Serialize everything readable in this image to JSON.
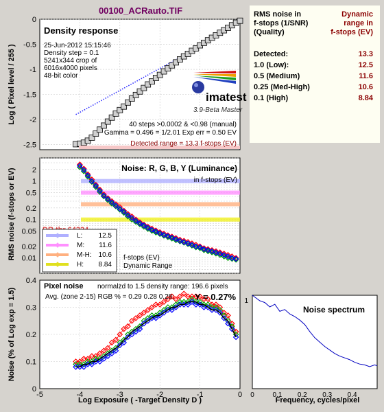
{
  "figure_title": "00100_ACRauto.TIF",
  "colors": {
    "background": "#d6d3ce",
    "plot_bg": "#ffffff",
    "title": "#700060",
    "dark_red": "#8b0000",
    "red": "#ff0000",
    "green": "#00a000",
    "blue": "#0000ff",
    "gray_marker": "#d0d0d0"
  },
  "summary": {
    "col1_header": [
      "RMS noise in",
      "f-stops (1/SNR)",
      "(Quality)"
    ],
    "col2_header": [
      "Dynamic",
      "range in",
      "f-stops (EV)"
    ],
    "rows": [
      {
        "label": "Detected:",
        "value": "13.3"
      },
      {
        "label": "1.0   (Low):",
        "value": "12.5"
      },
      {
        "label": "0.5   (Medium)",
        "value": "11.6"
      },
      {
        "label": "0.25 (Med-High)",
        "value": "10.6"
      },
      {
        "label": "0.1   (High)",
        "value": "8.84"
      }
    ]
  },
  "chart_data": [
    {
      "id": "density-response",
      "type": "scatter",
      "title": "Density response",
      "ylabel": "Log ( Pixel level / 255 )",
      "xlim": [
        -5,
        0
      ],
      "ylim": [
        -2.6,
        0
      ],
      "yticks": [
        "0",
        "-0.5",
        "-1",
        "-1.5",
        "-2",
        "-2.5"
      ],
      "grid": true,
      "info": [
        "25-Jun-2012 15:15:46",
        "Density step = 0.1",
        "5241x344 crop of",
        "6016x4000 pixels",
        "48-bit color"
      ],
      "logo_text": "imatest",
      "version_text": "3.9-Beta  Master",
      "stats_line1": "40 steps >0.0002 & <0.98 (manual)",
      "stats_line2": "Gamma = 0.496 = 1/2.01  Exp err = 0.50 EV",
      "detected_range": "Detected range = 13.3 f-stops (EV)",
      "x": [
        -4.1,
        -4.0,
        -3.9,
        -3.8,
        -3.7,
        -3.6,
        -3.5,
        -3.4,
        -3.3,
        -3.2,
        -3.1,
        -3.0,
        -2.9,
        -2.8,
        -2.7,
        -2.6,
        -2.5,
        -2.4,
        -2.3,
        -2.2,
        -2.1,
        -2.0,
        -1.9,
        -1.8,
        -1.7,
        -1.6,
        -1.5,
        -1.4,
        -1.3,
        -1.2,
        -1.1,
        -1.0,
        -0.9,
        -0.8,
        -0.7,
        -0.6,
        -0.5,
        -0.4,
        -0.3,
        -0.2,
        -0.1,
        0.0
      ],
      "y": [
        -2.49,
        -2.48,
        -2.46,
        -2.42,
        -2.36,
        -2.28,
        -2.2,
        -2.12,
        -2.04,
        -1.96,
        -1.88,
        -1.81,
        -1.74,
        -1.66,
        -1.58,
        -1.51,
        -1.44,
        -1.37,
        -1.3,
        -1.24,
        -1.17,
        -1.11,
        -1.04,
        -0.98,
        -0.92,
        -0.86,
        -0.8,
        -0.74,
        -0.69,
        -0.63,
        -0.58,
        -0.52,
        -0.47,
        -0.42,
        -0.37,
        -0.32,
        -0.27,
        -0.22,
        -0.17,
        -0.12,
        -0.07,
        -0.03
      ],
      "fit_line": {
        "x": [
          -4.1,
          -1.2
        ],
        "y": [
          -1.9,
          -0.63
        ]
      }
    },
    {
      "id": "noise-fstops",
      "type": "line",
      "title": "Noise: R, G, B, Y (Luminance)",
      "subtitle": "in f-stops (EV)",
      "ylabel": "RMS noise (f-stops or EV)",
      "xlim": [
        -5,
        0
      ],
      "ylim_log": [
        0.004,
        4
      ],
      "yticks": [
        "2",
        "1",
        "0.5",
        "0.2",
        "0.1",
        "0.05",
        "0.02",
        "0.01"
      ],
      "ytick_values": [
        2,
        1,
        0.5,
        0.2,
        0.1,
        0.05,
        0.02,
        0.01
      ],
      "dr_label": "DR thr 64224",
      "legend": [
        {
          "name": "L:",
          "value": "12.5",
          "color": "#b0b0ff"
        },
        {
          "name": "M:",
          "value": "11.6",
          "color": "#ff90ff"
        },
        {
          "name": "M-H:",
          "value": "10.6",
          "color": "#ffb080"
        },
        {
          "name": "H:",
          "value": "8.84",
          "color": "#e0e020"
        }
      ],
      "caption": [
        "f-stops (EV)",
        "Dynamic Range"
      ],
      "thresholds": [
        {
          "value": 1.0,
          "color": "#b0b0ff"
        },
        {
          "value": 0.5,
          "color": "#ff90ff"
        },
        {
          "value": 0.25,
          "color": "#ffb080"
        },
        {
          "value": 0.1,
          "color": "#f0f020"
        }
      ],
      "x": [
        -4.0,
        -3.9,
        -3.8,
        -3.7,
        -3.6,
        -3.5,
        -3.4,
        -3.3,
        -3.2,
        -3.1,
        -3.0,
        -2.9,
        -2.8,
        -2.7,
        -2.6,
        -2.5,
        -2.4,
        -2.3,
        -2.2,
        -2.1,
        -2.0,
        -1.9,
        -1.8,
        -1.7,
        -1.6,
        -1.5,
        -1.4,
        -1.3,
        -1.2,
        -1.1,
        -1.0,
        -0.9,
        -0.8,
        -0.7,
        -0.6,
        -0.5,
        -0.4,
        -0.3,
        -0.2,
        -0.1
      ],
      "series": [
        {
          "name": "R",
          "color": "#ff0000",
          "values": [
            2.7,
            2.1,
            1.5,
            1.1,
            0.8,
            0.6,
            0.45,
            0.36,
            0.3,
            0.25,
            0.21,
            0.17,
            0.14,
            0.12,
            0.1,
            0.085,
            0.074,
            0.065,
            0.058,
            0.052,
            0.047,
            0.043,
            0.039,
            0.036,
            0.033,
            0.03,
            0.028,
            0.026,
            0.024,
            0.022,
            0.02,
            0.018,
            0.017,
            0.016,
            0.015,
            0.014,
            0.013,
            0.012,
            0.011,
            0.01
          ]
        },
        {
          "name": "G",
          "color": "#00a000",
          "values": [
            2.3,
            1.8,
            1.3,
            0.95,
            0.7,
            0.52,
            0.4,
            0.32,
            0.26,
            0.22,
            0.18,
            0.15,
            0.12,
            0.1,
            0.087,
            0.075,
            0.065,
            0.057,
            0.051,
            0.046,
            0.042,
            0.038,
            0.035,
            0.032,
            0.029,
            0.027,
            0.025,
            0.023,
            0.021,
            0.019,
            0.018,
            0.016,
            0.015,
            0.014,
            0.013,
            0.012,
            0.011,
            0.01,
            0.0095,
            0.009
          ]
        },
        {
          "name": "B",
          "color": "#0000ff",
          "values": [
            2.5,
            1.95,
            1.4,
            1.0,
            0.75,
            0.56,
            0.42,
            0.34,
            0.28,
            0.23,
            0.19,
            0.16,
            0.13,
            0.11,
            0.093,
            0.08,
            0.07,
            0.061,
            0.054,
            0.049,
            0.044,
            0.04,
            0.037,
            0.034,
            0.031,
            0.028,
            0.026,
            0.024,
            0.022,
            0.02,
            0.019,
            0.017,
            0.016,
            0.015,
            0.014,
            0.013,
            0.012,
            0.011,
            0.01,
            0.0095
          ]
        }
      ]
    },
    {
      "id": "pixel-noise",
      "type": "line",
      "title": "Pixel noise",
      "subtitle": "normalzd to 1.5 density range: 196.6 pixels",
      "avg_text": "Avg. (zone 2-15) RGB % = 0.29  0.28  0.28;",
      "y_text": "Y = 0.27%",
      "xlabel": "Log Exposure ( -Target Density D )",
      "ylabel": "Noise (% of Log exp = 1.5)",
      "xlim": [
        -5,
        0
      ],
      "ylim": [
        0,
        0.4
      ],
      "xticks": [
        "-5",
        "-4",
        "-3",
        "-2",
        "-1",
        "0"
      ],
      "yticks": [
        "0.4",
        "0.3",
        "0.2",
        "0.1",
        "0"
      ],
      "x": [
        -4.1,
        -4.0,
        -3.9,
        -3.8,
        -3.7,
        -3.6,
        -3.5,
        -3.4,
        -3.3,
        -3.2,
        -3.1,
        -3.0,
        -2.9,
        -2.8,
        -2.7,
        -2.6,
        -2.5,
        -2.4,
        -2.3,
        -2.2,
        -2.1,
        -2.0,
        -1.9,
        -1.8,
        -1.7,
        -1.6,
        -1.5,
        -1.4,
        -1.3,
        -1.2,
        -1.1,
        -1.0,
        -0.9,
        -0.8,
        -0.7,
        -0.6,
        -0.5,
        -0.4,
        -0.3,
        -0.2,
        -0.1
      ],
      "series": [
        {
          "name": "R",
          "color": "#ff0000",
          "values": [
            0.1,
            0.1,
            0.11,
            0.11,
            0.12,
            0.12,
            0.13,
            0.14,
            0.15,
            0.17,
            0.18,
            0.2,
            0.22,
            0.23,
            0.25,
            0.26,
            0.27,
            0.28,
            0.29,
            0.3,
            0.31,
            0.31,
            0.32,
            0.33,
            0.34,
            0.33,
            0.34,
            0.35,
            0.34,
            0.34,
            0.34,
            0.34,
            0.33,
            0.33,
            0.31,
            0.31,
            0.3,
            0.28,
            0.27,
            0.24,
            0.21
          ]
        },
        {
          "name": "G",
          "color": "#00a000",
          "values": [
            0.09,
            0.09,
            0.09,
            0.1,
            0.1,
            0.11,
            0.11,
            0.12,
            0.13,
            0.14,
            0.15,
            0.17,
            0.18,
            0.2,
            0.21,
            0.22,
            0.23,
            0.25,
            0.26,
            0.27,
            0.27,
            0.28,
            0.29,
            0.3,
            0.3,
            0.31,
            0.32,
            0.32,
            0.32,
            0.33,
            0.32,
            0.32,
            0.31,
            0.31,
            0.3,
            0.3,
            0.29,
            0.27,
            0.25,
            0.23,
            0.2
          ]
        },
        {
          "name": "B",
          "color": "#0000ff",
          "values": [
            0.08,
            0.08,
            0.08,
            0.09,
            0.09,
            0.1,
            0.1,
            0.11,
            0.12,
            0.13,
            0.14,
            0.16,
            0.17,
            0.19,
            0.2,
            0.21,
            0.22,
            0.24,
            0.25,
            0.26,
            0.26,
            0.27,
            0.28,
            0.29,
            0.29,
            0.3,
            0.31,
            0.31,
            0.31,
            0.32,
            0.31,
            0.31,
            0.3,
            0.3,
            0.29,
            0.29,
            0.28,
            0.26,
            0.24,
            0.22,
            0.19
          ]
        },
        {
          "name": "Y",
          "color": "#000000",
          "values": [
            0.08,
            0.08,
            0.09,
            0.09,
            0.1,
            0.1,
            0.11,
            0.12,
            0.13,
            0.14,
            0.15,
            0.16,
            0.18,
            0.19,
            0.21,
            0.22,
            0.23,
            0.24,
            0.25,
            0.26,
            0.27,
            0.27,
            0.28,
            0.29,
            0.3,
            0.3,
            0.31,
            0.31,
            0.32,
            0.32,
            0.32,
            0.31,
            0.31,
            0.3,
            0.29,
            0.29,
            0.28,
            0.26,
            0.25,
            0.22,
            0.19
          ]
        }
      ]
    },
    {
      "id": "noise-spectrum",
      "type": "line",
      "title": "Noise spectrum",
      "xlabel": "Frequency, cycles/pixel",
      "xlim": [
        0,
        0.5
      ],
      "ylim": [
        0,
        1
      ],
      "xticks": [
        "0",
        "0.1",
        "0.2",
        "0.3",
        "0.4"
      ],
      "ytick_label": "1",
      "x": [
        0.0,
        0.03,
        0.05,
        0.07,
        0.09,
        0.11,
        0.13,
        0.15,
        0.17,
        0.19,
        0.21,
        0.23,
        0.25,
        0.27,
        0.29,
        0.31,
        0.33,
        0.35,
        0.37,
        0.39,
        0.41,
        0.43,
        0.45,
        0.47,
        0.49,
        0.5
      ],
      "values": [
        1.1,
        1.0,
        0.98,
        0.93,
        0.96,
        0.88,
        0.9,
        0.85,
        0.82,
        0.78,
        0.73,
        0.65,
        0.58,
        0.53,
        0.48,
        0.44,
        0.4,
        0.37,
        0.35,
        0.33,
        0.3,
        0.28,
        0.27,
        0.25,
        0.27,
        0.26
      ]
    }
  ]
}
